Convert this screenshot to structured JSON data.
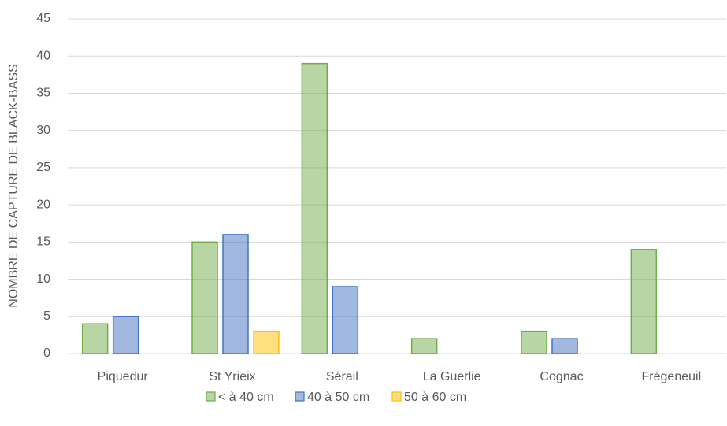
{
  "chart_data": {
    "type": "bar",
    "y_label": "NOMBRE DE CAPTURE DE BLACK-BASS",
    "categories": [
      "Piquedur",
      "St Yrieix",
      "Sérail",
      "La Guerlie",
      "Cognac",
      "Frégeneuil"
    ],
    "series": [
      {
        "name": "< à 40 cm",
        "color": "#70ad47",
        "values": [
          4,
          15,
          39,
          2,
          3,
          14
        ]
      },
      {
        "name": "40 à 50 cm",
        "color": "#4472c4",
        "values": [
          5,
          16,
          9,
          0,
          2,
          0
        ]
      },
      {
        "name": "50 à 60 cm",
        "color": "#ffc000",
        "values": [
          0,
          3,
          0,
          0,
          0,
          0
        ]
      }
    ],
    "ylim": [
      0,
      45
    ],
    "yticks": [
      0,
      5,
      10,
      15,
      20,
      25,
      30,
      35,
      40,
      45
    ],
    "grid": true,
    "legend": "bottom"
  }
}
